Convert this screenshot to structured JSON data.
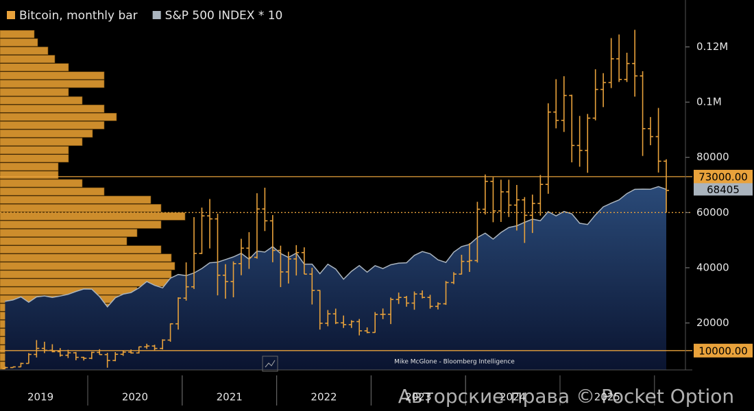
{
  "chart_data": {
    "type": "ohlc",
    "x": [
      2019.125,
      2019.208,
      2019.292,
      2019.375,
      2019.458,
      2019.542,
      2019.625,
      2019.708,
      2019.792,
      2019.875,
      2019.958,
      2020.042,
      2020.125,
      2020.208,
      2020.292,
      2020.375,
      2020.458,
      2020.542,
      2020.625,
      2020.708,
      2020.792,
      2020.875,
      2020.958,
      2021.042,
      2021.125,
      2021.208,
      2021.292,
      2021.375,
      2021.458,
      2021.542,
      2021.625,
      2021.708,
      2021.792,
      2021.875,
      2021.958,
      2022.042,
      2022.125,
      2022.208,
      2022.292,
      2022.375,
      2022.458,
      2022.542,
      2022.625,
      2022.708,
      2022.792,
      2022.875,
      2022.958,
      2023.042,
      2023.125,
      2023.208,
      2023.292,
      2023.375,
      2023.458,
      2023.542,
      2023.625,
      2023.708,
      2023.792,
      2023.875,
      2023.958,
      2024.042,
      2024.125,
      2024.208,
      2024.292,
      2024.375,
      2024.458,
      2024.542,
      2024.625,
      2024.708,
      2024.792,
      2024.875,
      2024.958,
      2025.042,
      2025.125,
      2025.208,
      2025.292,
      2025.375,
      2025.458,
      2025.542,
      2025.625,
      2025.708,
      2025.792,
      2025.875,
      2025.958,
      2026.042,
      2026.125
    ],
    "series": [
      {
        "name": "Bitcoin, monthly bar",
        "color": "#e9a23b",
        "open": [
          3450,
          3850,
          4100,
          5350,
          8600,
          10800,
          10100,
          9600,
          8300,
          9200,
          7550,
          7200,
          9350,
          8550,
          6400,
          8650,
          9450,
          9140,
          11350,
          11650,
          10780,
          13800,
          19700,
          29000,
          33100,
          45200,
          58800,
          57700,
          37300,
          35000,
          41500,
          47100,
          43800,
          61300,
          57000,
          46300,
          38500,
          43200,
          45500,
          37700,
          31800,
          19900,
          23300,
          20050,
          19400,
          20500,
          17150,
          16550,
          23100,
          23150,
          28500,
          29250,
          27200,
          30500,
          29250,
          26000,
          26950,
          34650,
          37700,
          42300,
          42600,
          61200,
          71300,
          60600,
          67500,
          62700,
          64600,
          59000,
          63300,
          70200,
          96400,
          93400,
          102400,
          84300,
          82500,
          94200,
          104600,
          107100,
          115700,
          108200,
          114000,
          109500,
          90400,
          87500,
          78600
        ],
        "high": [
          4200,
          4100,
          5600,
          9100,
          13800,
          13200,
          12300,
          10900,
          10300,
          9500,
          7750,
          9600,
          10500,
          9200,
          9450,
          10100,
          10400,
          11450,
          12470,
          12100,
          14100,
          19850,
          29300,
          41950,
          58350,
          61800,
          64900,
          59600,
          41300,
          42300,
          50500,
          52900,
          67000,
          69000,
          59100,
          48000,
          45800,
          48200,
          47400,
          40000,
          31900,
          24700,
          25200,
          22700,
          21000,
          21450,
          18400,
          23950,
          25250,
          29200,
          31000,
          29800,
          31400,
          31800,
          30200,
          27500,
          35200,
          38400,
          44700,
          48900,
          63900,
          73800,
          72800,
          71900,
          71900,
          70000,
          65600,
          66500,
          73600,
          99600,
          108300,
          109400,
          102700,
          95000,
          95700,
          111900,
          110500,
          123200,
          124500,
          117900,
          126200,
          111200,
          94600,
          97900,
          79300
        ],
        "low": [
          3400,
          3700,
          4050,
          5300,
          7500,
          9100,
          9400,
          7800,
          7300,
          6500,
          6400,
          6900,
          8500,
          3800,
          6150,
          8100,
          8900,
          8950,
          10600,
          9900,
          10400,
          13200,
          17600,
          28100,
          32300,
          45000,
          47000,
          30000,
          28800,
          29300,
          37300,
          39600,
          43300,
          53300,
          42000,
          33000,
          34300,
          37200,
          37700,
          26700,
          17600,
          18800,
          19600,
          18200,
          18200,
          15500,
          16300,
          16500,
          21400,
          19600,
          26900,
          25900,
          24800,
          28900,
          25200,
          24900,
          26550,
          34100,
          37600,
          38500,
          41900,
          59300,
          56500,
          56600,
          58400,
          53500,
          49000,
          52600,
          58900,
          66800,
          90500,
          89200,
          78200,
          76600,
          74400,
          93400,
          98200,
          105100,
          107300,
          107300,
          102000,
          80500,
          84400,
          74500,
          60000
        ],
        "close": [
          3850,
          4100,
          5350,
          8600,
          10800,
          10100,
          9600,
          8300,
          9200,
          7550,
          7200,
          9350,
          8550,
          6400,
          8650,
          9450,
          9140,
          11350,
          11650,
          10780,
          13800,
          19700,
          29000,
          33100,
          45200,
          58800,
          57700,
          37300,
          35000,
          41500,
          47100,
          43800,
          61300,
          57000,
          46300,
          38500,
          43200,
          45500,
          37700,
          31800,
          19900,
          23300,
          20050,
          19400,
          20500,
          17150,
          16550,
          23100,
          23150,
          28500,
          29250,
          27200,
          30500,
          29250,
          26000,
          26950,
          34650,
          37700,
          42300,
          42600,
          61200,
          71300,
          60600,
          67500,
          62700,
          64600,
          59000,
          63300,
          70200,
          96400,
          93400,
          102400,
          84300,
          82500,
          94200,
          104600,
          107100,
          115700,
          108200,
          114000,
          109500,
          90400,
          87500,
          78600,
          68000
        ]
      },
      {
        "name": "S&P 500 INDEX * 10",
        "color": "#aab4be",
        "values": [
          27840,
          28340,
          29460,
          27520,
          29420,
          29800,
          29260,
          29770,
          30380,
          31410,
          32310,
          32260,
          29540,
          25850,
          29120,
          30440,
          31000,
          32710,
          35000,
          33630,
          32700,
          36220,
          37560,
          37140,
          38110,
          39730,
          41810,
          42040,
          42980,
          43950,
          45230,
          43080,
          46050,
          45670,
          47660,
          45160,
          43740,
          45300,
          41320,
          41320,
          37850,
          41300,
          39550,
          35850,
          38720,
          40800,
          38400,
          40770,
          39700,
          41090,
          41690,
          41800,
          44500,
          45890,
          45080,
          42880,
          41940,
          45680,
          47700,
          48460,
          50960,
          52540,
          50360,
          52780,
          54600,
          55220,
          56480,
          57620,
          57050,
          60320,
          58820,
          60400,
          59550,
          56120,
          55690,
          59120,
          62050,
          63390,
          64600,
          66880,
          68400,
          68490,
          68450,
          69400,
          68405
        ]
      }
    ],
    "volume_profile": {
      "color": "#d8952f",
      "bins": [
        3000,
        6000,
        9000,
        12000,
        15000,
        18000,
        21000,
        24000,
        27000,
        30000,
        33000,
        36000,
        39000,
        42000,
        45000,
        48000,
        51000,
        54000,
        57000,
        60000,
        63000,
        66000,
        69000,
        72000,
        75000,
        78000,
        81000,
        84000,
        87000,
        90000,
        93000,
        96000,
        99000,
        102000,
        105000,
        108000,
        111000,
        114000,
        117000,
        120000,
        123000,
        126000
      ],
      "values": [
        120,
        240,
        85,
        150,
        185,
        170,
        175,
        235,
        185,
        200,
        250,
        250,
        255,
        250,
        235,
        185,
        200,
        235,
        270,
        235,
        220,
        152,
        120,
        85,
        85,
        100,
        100,
        120,
        135,
        152,
        170,
        152,
        120,
        100,
        152,
        152,
        100,
        80,
        70,
        55,
        50
      ]
    },
    "reference_lines": [
      {
        "value": 73000,
        "label": "73000.00",
        "style": "solid",
        "color": "#e9a23b"
      },
      {
        "value": 60000,
        "style": "dotted",
        "color": "#e9a23b"
      },
      {
        "value": 10000,
        "label": "10000.00",
        "style": "solid",
        "color": "#e9a23b"
      }
    ],
    "ylim": [
      3000,
      137000
    ],
    "yticks": [
      20000,
      40000,
      60000,
      80000,
      {
        "value": 100000,
        "label": "0.1M"
      },
      {
        "value": 120000,
        "label": "0.12M"
      }
    ],
    "xlim": [
      2019.071,
      2026.328
    ],
    "xticks": [
      {
        "value": 2019.5,
        "label": "2019"
      },
      {
        "value": 2020.5,
        "label": "2020"
      },
      {
        "value": 2021.5,
        "label": "2021"
      },
      {
        "value": 2022.5,
        "label": "2022"
      },
      {
        "value": 2023.5,
        "label": "2023"
      },
      {
        "value": 2024.5,
        "label": "2024"
      },
      {
        "value": 2025.5,
        "label": "2025"
      }
    ],
    "annotation": "Mike McGlone - Bloomberg Intelligence",
    "watermark": "Авторские права © Pocket Option"
  }
}
